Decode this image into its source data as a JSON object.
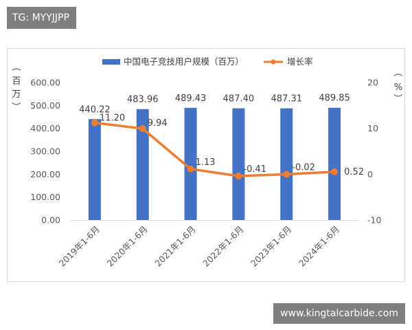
{
  "header_tag": "TG: MYYJJPP",
  "footer_site": "www.kingtalcarbide.com",
  "colors": {
    "bar": "#4472c4",
    "line": "#ed7d31",
    "axis": "#d9d9d9",
    "text": "#595959"
  },
  "chart_data": {
    "type": "bar+line",
    "categories": [
      "2019年1-6月",
      "2020年1-6月",
      "2021年1-6月",
      "2022年1-6月",
      "2023年1-6月",
      "2024年1-6月"
    ],
    "series": [
      {
        "name": "中国电子竞技用户规模（百万）",
        "type": "bar",
        "axis": "left",
        "values": [
          440.22,
          483.96,
          489.43,
          487.4,
          487.31,
          489.85
        ],
        "labels": [
          "440.22",
          "483.96",
          "489.43",
          "487.40",
          "487.31",
          "489.85"
        ]
      },
      {
        "name": "增长率",
        "type": "line",
        "axis": "right",
        "values": [
          11.2,
          9.94,
          1.13,
          -0.41,
          -0.02,
          0.52
        ],
        "labels": [
          "11.20",
          "9.94",
          "1.13",
          "-0.41",
          "-0.02",
          "0.52"
        ]
      }
    ],
    "left_axis": {
      "unit_label": [
        "（",
        "百",
        "万",
        "）"
      ],
      "ylim": [
        0,
        600
      ],
      "ticks": [
        "0.00",
        "100.00",
        "200.00",
        "300.00",
        "400.00",
        "500.00",
        "600.00"
      ]
    },
    "right_axis": {
      "unit_label": [
        "（",
        "%",
        "）"
      ],
      "ylim": [
        -10,
        20
      ],
      "ticks": [
        "-10",
        "0",
        "10",
        "20"
      ]
    },
    "legend_position": "top",
    "grid": false
  }
}
